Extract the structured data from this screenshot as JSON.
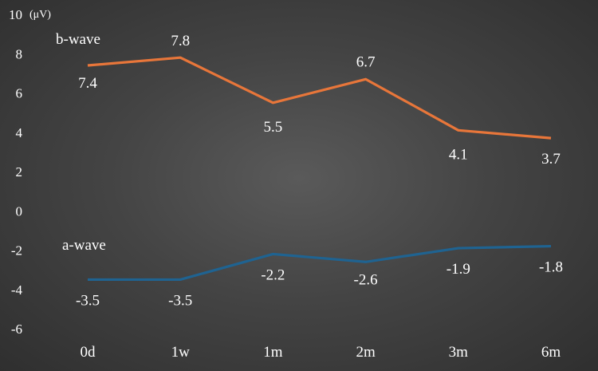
{
  "chart_data": {
    "type": "line",
    "unit_label": "(μV)",
    "categories": [
      "0d",
      "1w",
      "1m",
      "2m",
      "3m",
      "6m"
    ],
    "ylim": [
      -6,
      10
    ],
    "yticks": [
      -6,
      -4,
      -2,
      0,
      2,
      4,
      6,
      8,
      10
    ],
    "grid": false,
    "series": [
      {
        "name": "b-wave",
        "color": "#e8763a",
        "values": [
          7.4,
          7.8,
          5.5,
          6.7,
          4.1,
          3.7
        ],
        "labels": [
          "7.4",
          "7.8",
          "5.5",
          "6.7",
          "4.1",
          "3.7"
        ]
      },
      {
        "name": "a-wave",
        "color": "#1f6391",
        "values": [
          -3.5,
          -3.5,
          -2.2,
          -2.6,
          -1.9,
          -1.8
        ],
        "labels": [
          "-3.5",
          "-3.5",
          "-2.2",
          "-2.6",
          "-1.9",
          "-1.8"
        ]
      }
    ]
  }
}
